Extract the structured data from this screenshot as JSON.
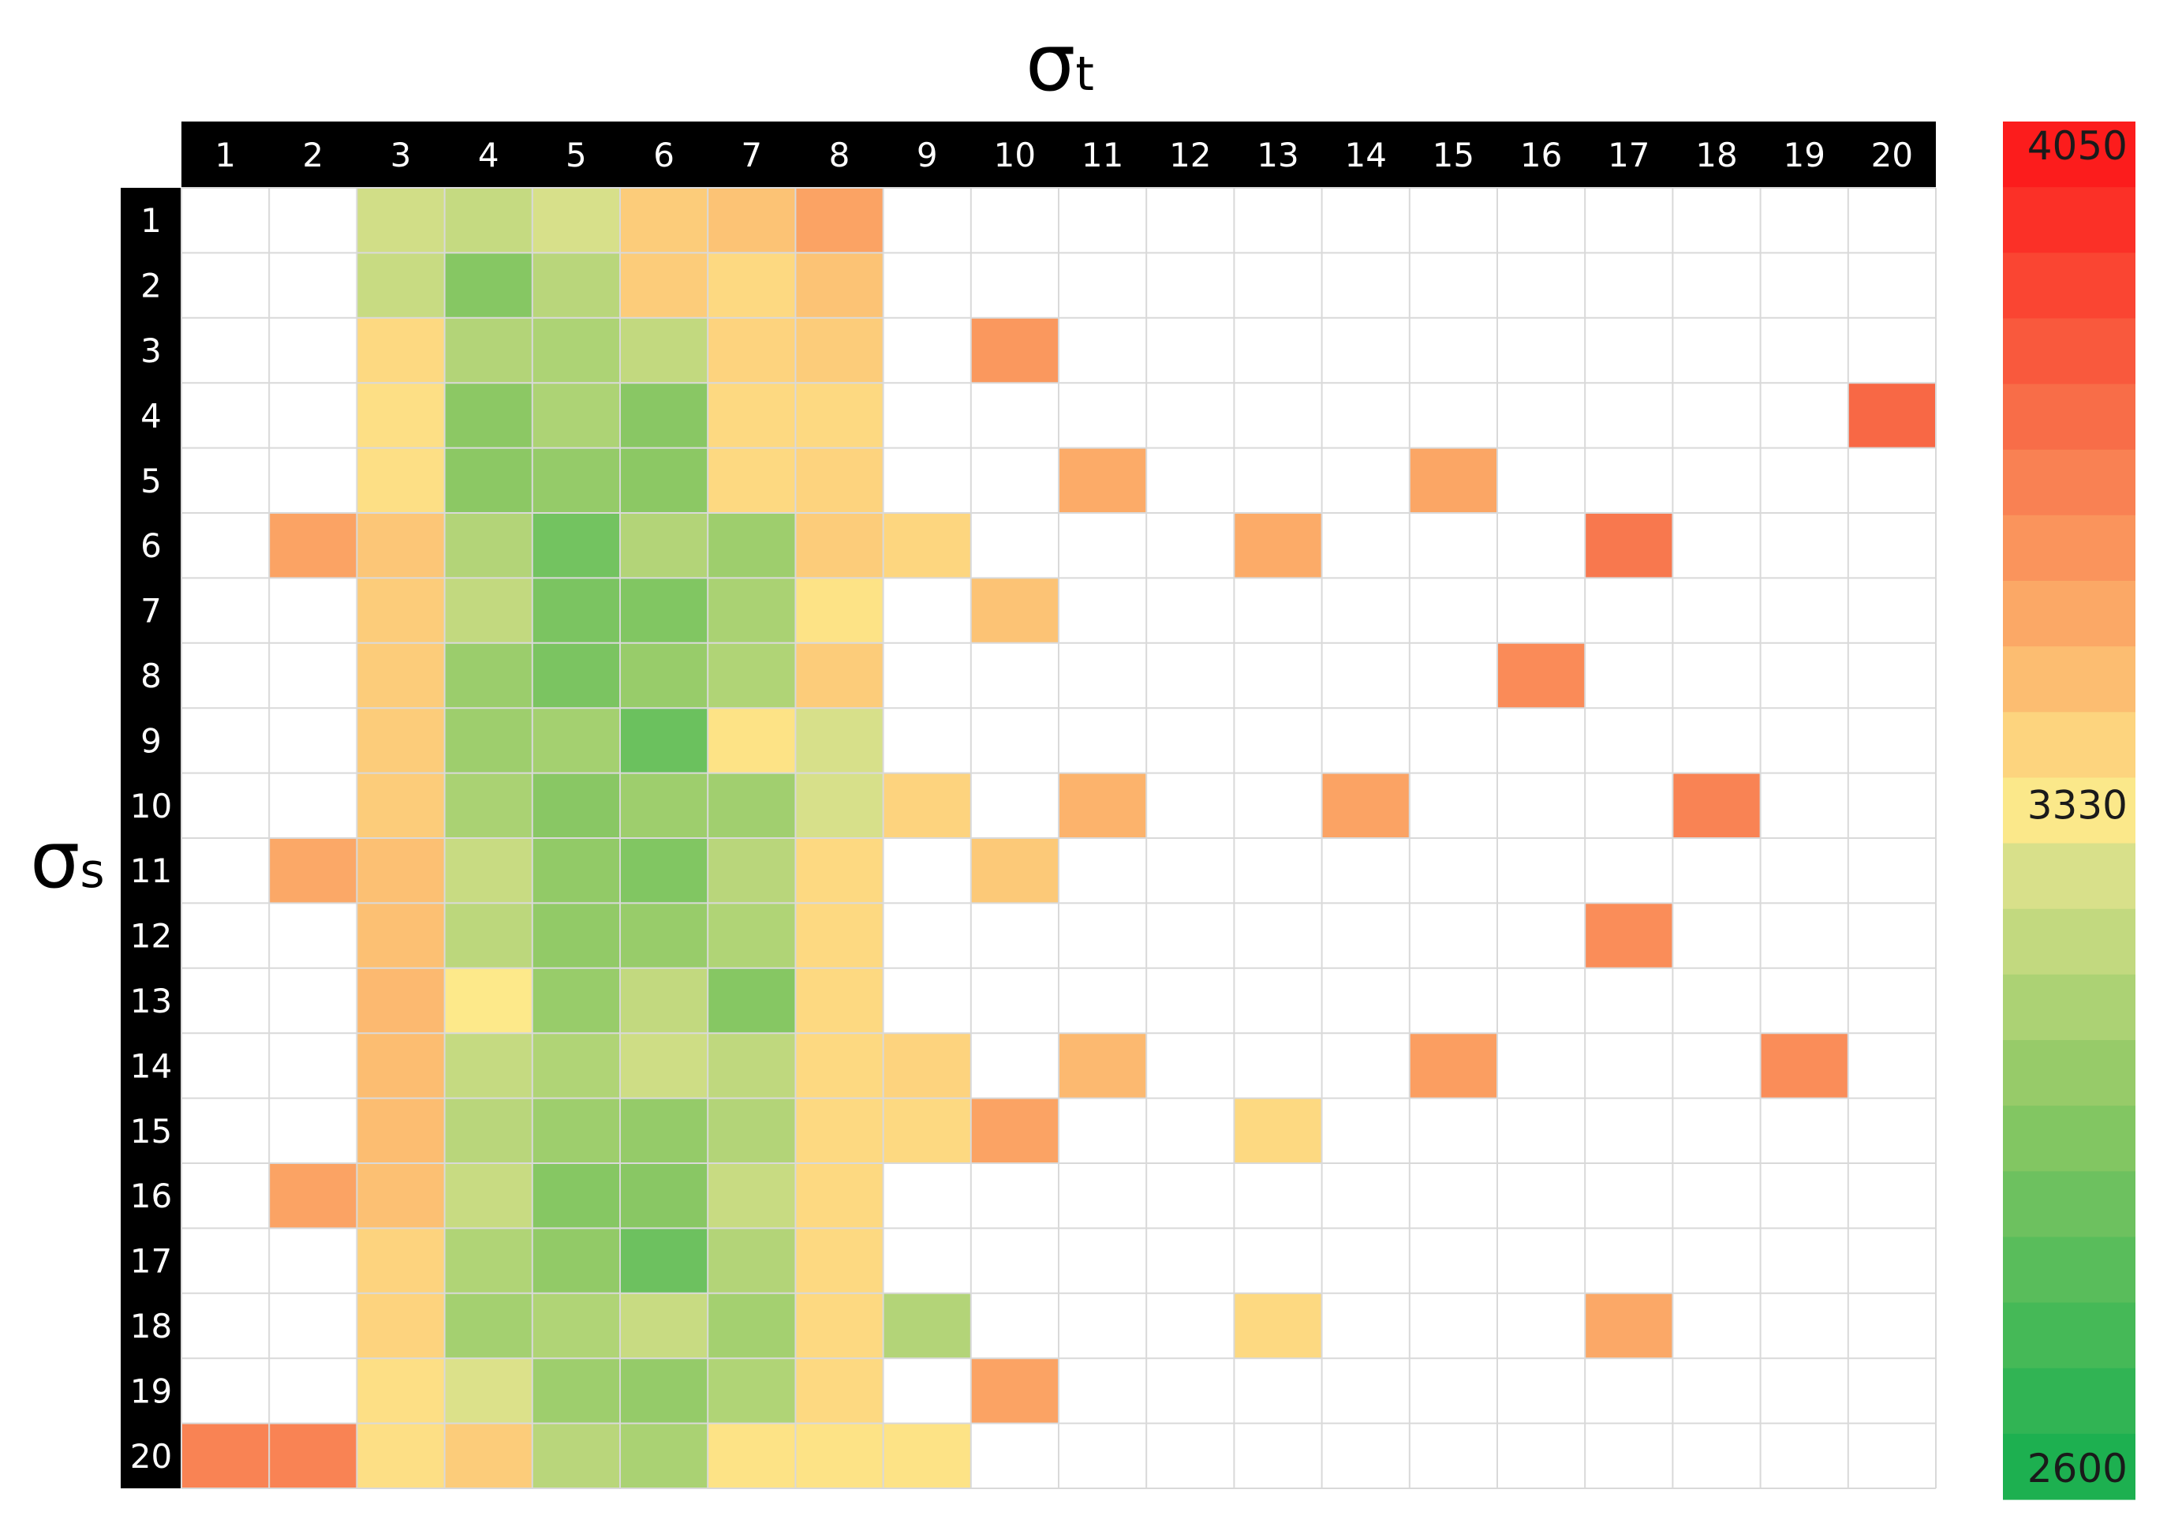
{
  "chart_data": {
    "type": "heatmap",
    "x_title": "σ",
    "x_title_sub": "t",
    "y_title": "σ",
    "y_title_sub": "s",
    "x_labels": [
      "1",
      "2",
      "3",
      "4",
      "5",
      "6",
      "7",
      "8",
      "9",
      "10",
      "11",
      "12",
      "13",
      "14",
      "15",
      "16",
      "17",
      "18",
      "19",
      "20"
    ],
    "y_labels": [
      "1",
      "2",
      "3",
      "4",
      "5",
      "6",
      "7",
      "8",
      "9",
      "10",
      "11",
      "12",
      "13",
      "14",
      "15",
      "16",
      "17",
      "18",
      "19",
      "20"
    ],
    "value_range": [
      2600,
      4050
    ],
    "colorbar": {
      "labels": [
        "4050",
        "3330",
        "2600"
      ],
      "stops": [
        {
          "value": 2600,
          "color": "#1db050"
        },
        {
          "value": 3000,
          "color": "#8cc864"
        },
        {
          "value": 3250,
          "color": "#d7e08a"
        },
        {
          "value": 3330,
          "color": "#fde98a"
        },
        {
          "value": 3500,
          "color": "#fcb36c"
        },
        {
          "value": 3750,
          "color": "#f8704a"
        },
        {
          "value": 4050,
          "color": "#fc1c1c"
        }
      ]
    },
    "values": [
      [
        null,
        null,
        3230,
        3190,
        3250,
        3420,
        3450,
        3560,
        null,
        null,
        null,
        null,
        null,
        null,
        null,
        null,
        null,
        null,
        null,
        null
      ],
      [
        null,
        null,
        3200,
        2980,
        3150,
        3420,
        3380,
        3450,
        null,
        null,
        null,
        null,
        null,
        null,
        null,
        null,
        null,
        null,
        null,
        null
      ],
      [
        null,
        null,
        3380,
        3130,
        3110,
        3180,
        3400,
        3420,
        null,
        3600,
        null,
        null,
        null,
        null,
        null,
        null,
        null,
        null,
        null,
        null
      ],
      [
        null,
        null,
        3360,
        3000,
        3110,
        2990,
        3380,
        3380,
        null,
        null,
        null,
        null,
        null,
        null,
        null,
        null,
        null,
        null,
        null,
        3780
      ],
      [
        null,
        null,
        3360,
        3000,
        3030,
        3000,
        3380,
        3400,
        null,
        null,
        3530,
        null,
        null,
        null,
        3550,
        null,
        null,
        null,
        null,
        null
      ],
      [
        null,
        3560,
        3440,
        3130,
        2910,
        3130,
        3060,
        3420,
        3390,
        null,
        null,
        null,
        3530,
        null,
        null,
        null,
        3720,
        null,
        null,
        null
      ],
      [
        null,
        null,
        3420,
        3180,
        2940,
        2960,
        3100,
        3350,
        null,
        3450,
        null,
        null,
        null,
        null,
        null,
        null,
        null,
        null,
        null,
        null
      ],
      [
        null,
        null,
        3420,
        3050,
        2940,
        3040,
        3120,
        3420,
        null,
        null,
        null,
        null,
        null,
        null,
        null,
        3650,
        null,
        null,
        null,
        null
      ],
      [
        null,
        null,
        3420,
        3060,
        3080,
        2880,
        3350,
        3250,
        null,
        null,
        null,
        null,
        null,
        null,
        null,
        null,
        null,
        null,
        null,
        null
      ],
      [
        null,
        null,
        3420,
        3100,
        2990,
        3060,
        3070,
        3250,
        3400,
        null,
        3500,
        null,
        null,
        3560,
        null,
        null,
        null,
        3680,
        null,
        null
      ],
      [
        null,
        3540,
        3460,
        3200,
        3020,
        2960,
        3150,
        3380,
        null,
        3430,
        null,
        null,
        null,
        null,
        null,
        null,
        null,
        null,
        null,
        null
      ],
      [
        null,
        null,
        3460,
        3160,
        3020,
        3040,
        3120,
        3380,
        null,
        null,
        null,
        null,
        null,
        null,
        null,
        null,
        3640,
        null,
        null,
        null
      ],
      [
        null,
        null,
        3480,
        3330,
        3040,
        3180,
        2980,
        3380,
        null,
        null,
        null,
        null,
        null,
        null,
        null,
        null,
        null,
        null,
        null,
        null
      ],
      [
        null,
        null,
        3470,
        3190,
        3120,
        3220,
        3170,
        3380,
        3400,
        null,
        3480,
        null,
        null,
        null,
        3580,
        null,
        null,
        null,
        3640,
        null
      ],
      [
        null,
        null,
        3470,
        3150,
        3060,
        3030,
        3130,
        3380,
        3380,
        3560,
        null,
        null,
        3380,
        null,
        null,
        null,
        null,
        null,
        null,
        null
      ],
      [
        null,
        3560,
        3460,
        3200,
        2980,
        2990,
        3200,
        3380,
        null,
        null,
        null,
        null,
        null,
        null,
        null,
        null,
        null,
        null,
        null,
        null
      ],
      [
        null,
        null,
        3400,
        3120,
        3020,
        2890,
        3130,
        3380,
        null,
        null,
        null,
        null,
        null,
        null,
        null,
        null,
        null,
        null,
        null,
        null
      ],
      [
        null,
        null,
        3400,
        3080,
        3120,
        3200,
        3080,
        3380,
        3130,
        null,
        null,
        null,
        3380,
        null,
        null,
        null,
        3540,
        null,
        null,
        null
      ],
      [
        null,
        null,
        3360,
        3260,
        3060,
        3030,
        3120,
        3380,
        null,
        3560,
        null,
        null,
        null,
        null,
        null,
        null,
        null,
        null,
        null,
        null
      ],
      [
        3680,
        3680,
        3360,
        3420,
        3150,
        3100,
        3350,
        3350,
        3350,
        null,
        null,
        null,
        null,
        null,
        null,
        null,
        null,
        null,
        null,
        null
      ]
    ]
  }
}
